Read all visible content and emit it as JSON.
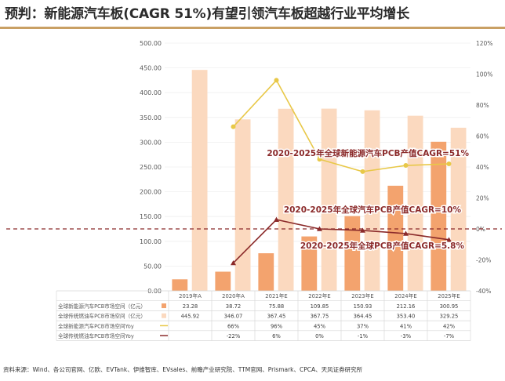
{
  "title": "预判：新能源汽车板(CAGR 51%)有望引领汽车板超越行业平均增长",
  "source": "资料来源：Wind、各公司官网、亿欧、EVTank、伊维智库、EVsales、前瞻产业研究院、TTM官网、Prismark、CPCA、天风证券研究所",
  "chart_data": {
    "type": "bar",
    "categories": [
      "2019年A",
      "2020年A",
      "2021年E",
      "2022年E",
      "2023年E",
      "2024年E",
      "2025年E"
    ],
    "ylim": [
      0,
      500
    ],
    "yticks": [
      "500.00",
      "450.00",
      "400.00",
      "350.00",
      "300.00",
      "250.00",
      "200.00",
      "150.00",
      "100.00",
      "50.00",
      "0.00"
    ],
    "y2lim": [
      -40,
      120
    ],
    "y2ticks": [
      "120%",
      "100%",
      "80%",
      "60%",
      "40%",
      "20%",
      "0%",
      "-20%",
      "-40%"
    ],
    "series": [
      {
        "name": "全球新能源汽车PCB市场空间（亿元）",
        "type": "bar",
        "axis": "left",
        "color": "#f3a36e",
        "values": [
          23.28,
          38.72,
          75.88,
          109.85,
          150.93,
          212.16,
          300.95
        ]
      },
      {
        "name": "全球传统燃油车PCB市场空间（亿元）",
        "type": "bar",
        "axis": "left",
        "color": "#fbd9bf",
        "values": [
          445.92,
          346.07,
          367.45,
          367.75,
          364.45,
          353.4,
          329.25
        ]
      },
      {
        "name": "全球新能源汽车PCB市场空间Yoy",
        "type": "line",
        "axis": "right",
        "color": "#e8c848",
        "values": [
          null,
          66,
          96,
          45,
          37,
          41,
          42
        ]
      },
      {
        "name": "全球传统燃油车PCB市场空间Yoy",
        "type": "line",
        "axis": "right",
        "color": "#8b2a2a",
        "values": [
          null,
          -22,
          6,
          0,
          -1,
          -3,
          -7
        ]
      }
    ],
    "table": {
      "rows": [
        {
          "label": "全球新能源汽车PCB市场空间（亿元）",
          "values": [
            "23.28",
            "38.72",
            "75.88",
            "109.85",
            "150.93",
            "212.16",
            "300.95"
          ]
        },
        {
          "label": "全球传统燃油车PCB市场空间（亿元）",
          "values": [
            "445.92",
            "346.07",
            "367.45",
            "367.75",
            "364.45",
            "353.40",
            "329.25"
          ]
        },
        {
          "label": "全球新能源汽车PCB市场空间Yoy",
          "values": [
            "",
            "66%",
            "96%",
            "45%",
            "37%",
            "41%",
            "42%"
          ]
        },
        {
          "label": "全球传统燃油车PCB市场空间Yoy",
          "values": [
            "",
            "-22%",
            "6%",
            "0%",
            "-1%",
            "-3%",
            "-7%"
          ]
        }
      ]
    },
    "reference_line": {
      "axis": "right",
      "value": 0,
      "color": "#8b2a2a",
      "style": "dashed"
    },
    "annotations": [
      {
        "text": "2020-2025年全球新能源汽车PCB产值CAGR=51%",
        "color": "#8b2a2a"
      },
      {
        "text": "2020-2025年全球汽车PCB产值CAGR=10%",
        "color": "#8b2a2a"
      },
      {
        "text": "2020-2025年全球PCB产值CAGR=5.8%",
        "color": "#8b2a2a"
      }
    ],
    "legend": "table-left"
  }
}
